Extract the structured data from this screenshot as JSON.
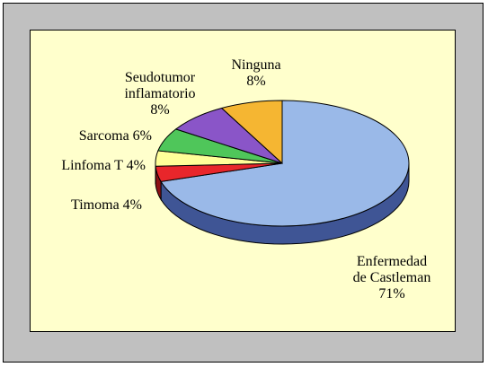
{
  "chart_data": {
    "type": "pie",
    "title": "",
    "slices": [
      {
        "label_lines": [
          "Enfermedad",
          "de Castleman",
          "71%"
        ],
        "value": 71,
        "color": "#9ab9e8",
        "side": "#3f5595"
      },
      {
        "label_lines": [
          "Timoma 4%"
        ],
        "value": 4,
        "color": "#e8262b",
        "side": "#8d1014"
      },
      {
        "label_lines": [
          "Linfoma T 4%"
        ],
        "value": 4,
        "color": "#ffff99",
        "side": "#b8b85a"
      },
      {
        "label_lines": [
          "Sarcoma 6%"
        ],
        "value": 6,
        "color": "#4fc65a",
        "side": "#257a2e"
      },
      {
        "label_lines": [
          "Seudotumor",
          "inflamatorio",
          "8%"
        ],
        "value": 8,
        "color": "#8a55c8",
        "side": "#4e2a7a"
      },
      {
        "label_lines": [
          "Ninguna",
          "8%"
        ],
        "value": 8,
        "color": "#f5b632",
        "side": "#9a6c12"
      }
    ]
  }
}
